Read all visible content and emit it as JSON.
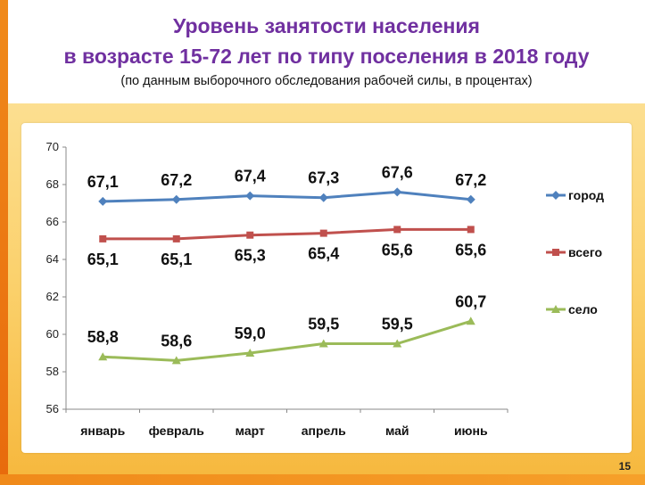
{
  "header": {
    "title_line1": "Уровень занятости населения",
    "title_line2": "в возрасте 15-72 лет по типу поселения в 2018 году",
    "subtitle": "(по данным выборочного обследования рабочей силы, в процентах)"
  },
  "page_number": "15",
  "colors": {
    "город": "#4f81bd",
    "всего": "#c0504d",
    "село": "#9bbb59",
    "title": "#7030a0"
  },
  "chart_data": {
    "type": "line",
    "title": "Уровень занятости населения в возрасте 15-72 лет по типу поселения в 2018 году",
    "categories": [
      "январь",
      "февраль",
      "март",
      "апрель",
      "май",
      "июнь"
    ],
    "ylim": [
      56,
      70
    ],
    "yticks": [
      56,
      58,
      60,
      62,
      64,
      66,
      68,
      70
    ],
    "grid": false,
    "legend_position": "right",
    "series": [
      {
        "name": "город",
        "values": [
          67.1,
          67.2,
          67.4,
          67.3,
          67.6,
          67.2
        ],
        "labels": [
          "67,1",
          "67,2",
          "67,4",
          "67,3",
          "67,6",
          "67,2"
        ],
        "marker": "diamond",
        "label_position": "above"
      },
      {
        "name": "всего",
        "values": [
          65.1,
          65.1,
          65.3,
          65.4,
          65.6,
          65.6
        ],
        "labels": [
          "65,1",
          "65,1",
          "65,3",
          "65,4",
          "65,6",
          "65,6"
        ],
        "marker": "square",
        "label_position": "below"
      },
      {
        "name": "село",
        "values": [
          58.8,
          58.6,
          59.0,
          59.5,
          59.5,
          60.7
        ],
        "labels": [
          "58,8",
          "58,6",
          "59,0",
          "59,5",
          "59,5",
          "60,7"
        ],
        "marker": "triangle",
        "label_position": "above"
      }
    ]
  }
}
